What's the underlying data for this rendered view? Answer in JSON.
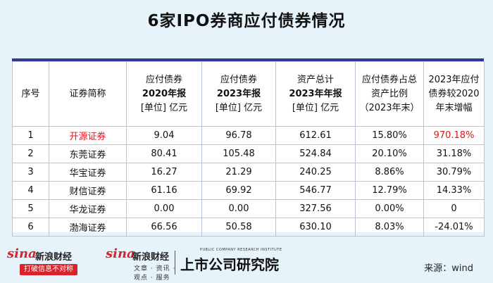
{
  "title": "6家IPO券商应付债券情况",
  "table": {
    "headers": [
      [
        "序号"
      ],
      [
        "证券简称"
      ],
      [
        "应付债券",
        "2020年报",
        "[单位] 亿元"
      ],
      [
        "应付债券",
        "2023年报",
        "[单位] 亿元"
      ],
      [
        "资产总计",
        "2023年年报",
        "[单位] 亿元"
      ],
      [
        "应付债券占总",
        "资产比例",
        "（2023年末）"
      ],
      [
        "2023年应付",
        "债券较2020",
        "年末增幅"
      ]
    ],
    "rows": [
      [
        "1",
        "开源证券",
        "9.04",
        "96.78",
        "612.61",
        "15.80%",
        "970.18%"
      ],
      [
        "2",
        "东莞证券",
        "80.41",
        "105.48",
        "524.84",
        "20.10%",
        "31.18%"
      ],
      [
        "3",
        "华宝证券",
        "16.27",
        "21.29",
        "240.25",
        "8.86%",
        "30.79%"
      ],
      [
        "4",
        "财信证券",
        "61.16",
        "69.92",
        "546.77",
        "12.79%",
        "14.33%"
      ],
      [
        "5",
        "华龙证券",
        "0.00",
        "0.00",
        "327.56",
        "0.00%",
        "0"
      ],
      [
        "6",
        "渤海证券",
        "66.56",
        "50.58",
        "630.10",
        "8.03%",
        "-24.01%"
      ]
    ],
    "highlight_color": "#e3161b"
  },
  "footer": {
    "logo1_word": "sina",
    "logo1_cn": "新浪财经",
    "logo1_badge": "打破信息不对称",
    "logo2_word": "sina",
    "logo2_cn": "新浪财经",
    "logo2_sub": "文章 · 资讯 · 观点 · 服务",
    "logo3_small": "PUBLIC COMPANY RESEARCH INSTITUTE",
    "logo3_big": "上市公司研究院",
    "source": "来源：wind"
  }
}
